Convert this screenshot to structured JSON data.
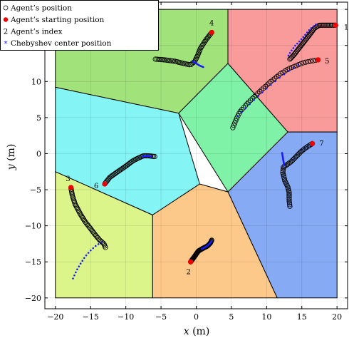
{
  "chart_data": {
    "type": "scatter",
    "xlabel": "x (m)",
    "ylabel": "y (m)",
    "xlim": [
      -21.5,
      21.5
    ],
    "ylim": [
      -21.5,
      21
    ],
    "xticks": [
      -20,
      -15,
      -10,
      -5,
      0,
      5,
      10,
      15,
      20
    ],
    "yticks": [
      -20,
      -15,
      -10,
      -5,
      0,
      5,
      10,
      15,
      20
    ],
    "grid": true,
    "legend_position": "top-left",
    "legend": [
      {
        "marker": "open-circle",
        "label": "Agent’s position"
      },
      {
        "marker": "red-dot",
        "label": "Agent’s starting position"
      },
      {
        "marker": "index",
        "symbol": "2",
        "label": "Agent’s index"
      },
      {
        "marker": "blue-star",
        "label": "Chebyshev center position"
      }
    ],
    "regions": [
      {
        "agent": "1",
        "color": "#f99b9b",
        "vertices": [
          [
            4.5,
            20
          ],
          [
            20,
            20
          ],
          [
            20,
            3
          ],
          [
            13,
            3
          ],
          [
            4.5,
            12.5
          ]
        ]
      },
      {
        "agent": "4",
        "color": "#a2e27b",
        "vertices": [
          [
            -20,
            20
          ],
          [
            4.5,
            20
          ],
          [
            4.5,
            12.5
          ],
          [
            -2.5,
            5.6
          ],
          [
            -20,
            9.2
          ]
        ]
      },
      {
        "agent": "5",
        "color": "#7ff2a7",
        "vertices": [
          [
            4.5,
            12.5
          ],
          [
            13,
            3
          ],
          [
            4.5,
            -5.3
          ],
          [
            -2.5,
            5.6
          ]
        ]
      },
      {
        "agent": "6",
        "color": "#84f4f4",
        "vertices": [
          [
            -20,
            9.2
          ],
          [
            -2.5,
            5.6
          ],
          [
            0.5,
            -4.2
          ],
          [
            -6.2,
            -8.5
          ],
          [
            -20,
            -2.5
          ]
        ]
      },
      {
        "agent": "7",
        "color": "#86aaf4",
        "vertices": [
          [
            13,
            3
          ],
          [
            20,
            3
          ],
          [
            20,
            -20
          ],
          [
            11.5,
            -20
          ],
          [
            4.5,
            -5.3
          ]
        ]
      },
      {
        "agent": "2",
        "color": "#fdc98a",
        "vertices": [
          [
            0.5,
            -4.2
          ],
          [
            4.5,
            -5.3
          ],
          [
            11.5,
            -20
          ],
          [
            -6.2,
            -20
          ],
          [
            -6.2,
            -8.5
          ]
        ]
      },
      {
        "agent": "3",
        "color": "#dbf58a",
        "vertices": [
          [
            -20,
            -2.5
          ],
          [
            -6.2,
            -8.5
          ],
          [
            -6.2,
            -20
          ],
          [
            -20,
            -20
          ]
        ]
      }
    ],
    "series": [
      {
        "agent": "1",
        "start": [
          19.8,
          17.8
        ],
        "index_pos": [
          21.3,
          17.5
        ],
        "path": [
          [
            19.8,
            17.8
          ],
          [
            18.5,
            17.8
          ],
          [
            17.5,
            17.8
          ],
          [
            16.8,
            17.4
          ],
          [
            16.2,
            16.6
          ],
          [
            15.4,
            15.6
          ],
          [
            14.6,
            14.6
          ],
          [
            13.8,
            13.6
          ],
          [
            13.3,
            13.1
          ]
        ],
        "cheb": [
          [
            17,
            17.9
          ],
          [
            16.2,
            17.3
          ],
          [
            15.5,
            16.5
          ],
          [
            14.8,
            15.7
          ],
          [
            14,
            14.9
          ],
          [
            13.4,
            14.1
          ],
          [
            13.1,
            13.6
          ]
        ]
      },
      {
        "agent": "2",
        "start": [
          -0.8,
          -15
        ],
        "index_pos": [
          -1.1,
          -16.4
        ],
        "path": [
          [
            -0.8,
            -15
          ],
          [
            -0.2,
            -14.2
          ],
          [
            0.3,
            -13.5
          ],
          [
            1.0,
            -13.1
          ],
          [
            1.6,
            -12.8
          ],
          [
            2.0,
            -12.4
          ],
          [
            2.2,
            -12.0
          ]
        ],
        "cheb": [
          [
            0.8,
            -13.2
          ],
          [
            1.4,
            -12.9
          ],
          [
            1.9,
            -12.5
          ],
          [
            2.2,
            -12.1
          ]
        ]
      },
      {
        "agent": "3",
        "start": [
          -17.8,
          -4.7
        ],
        "index_pos": [
          -18.2,
          -3.5
        ],
        "path": [
          [
            -17.8,
            -4.7
          ],
          [
            -17.6,
            -5.8
          ],
          [
            -17.2,
            -7.0
          ],
          [
            -16.5,
            -8.3
          ],
          [
            -15.8,
            -9.4
          ],
          [
            -15.0,
            -10.4
          ],
          [
            -14.3,
            -11.3
          ],
          [
            -13.7,
            -12.0
          ],
          [
            -13.1,
            -12.5
          ],
          [
            -12.9,
            -13.0
          ]
        ],
        "cheb": [
          [
            -17.5,
            -17.3
          ],
          [
            -17,
            -16.2
          ],
          [
            -16.4,
            -15.2
          ],
          [
            -15.8,
            -14.3
          ],
          [
            -15.1,
            -13.5
          ],
          [
            -14.3,
            -12.8
          ],
          [
            -13.5,
            -12.3
          ]
        ]
      },
      {
        "agent": "4",
        "start": [
          2.2,
          16.8
        ],
        "index_pos": [
          2.2,
          18.1
        ],
        "path": [
          [
            2.2,
            16.8
          ],
          [
            1.4,
            15.8
          ],
          [
            0.6,
            14.6
          ],
          [
            0.2,
            13.6
          ],
          [
            -0.2,
            12.8
          ],
          [
            -0.8,
            12.3
          ],
          [
            -1.8,
            12.5
          ],
          [
            -3.0,
            12.8
          ],
          [
            -4.5,
            13.0
          ],
          [
            -5.8,
            13.1
          ]
        ],
        "cheb": [
          [
            -0.5,
            12.8
          ],
          [
            0.0,
            12.5
          ],
          [
            0.5,
            12.2
          ],
          [
            1.0,
            12.0
          ]
        ]
      },
      {
        "agent": "5",
        "start": [
          17.3,
          13.0
        ],
        "index_pos": [
          18.6,
          12.8
        ],
        "path": [
          [
            17.3,
            13.0
          ],
          [
            16.2,
            12.8
          ],
          [
            15.2,
            12.6
          ],
          [
            14.2,
            12.2
          ],
          [
            13.2,
            11.8
          ],
          [
            12.0,
            11.1
          ],
          [
            10.6,
            10.0
          ],
          [
            9.0,
            8.6
          ],
          [
            7.4,
            7.1
          ],
          [
            6.2,
            5.8
          ],
          [
            5.7,
            4.8
          ],
          [
            5.5,
            4.3
          ],
          [
            5.2,
            3.6
          ]
        ],
        "cheb": [
          [
            14.5,
            12.3
          ],
          [
            13.2,
            11.5
          ],
          [
            11.8,
            10.5
          ],
          [
            10.2,
            9.2
          ],
          [
            8.6,
            7.8
          ],
          [
            7.0,
            6.3
          ],
          [
            5.9,
            5.2
          ]
        ]
      },
      {
        "agent": "6",
        "start": [
          -13.0,
          -4.2
        ],
        "index_pos": [
          -14.2,
          -4.5
        ],
        "path": [
          [
            -13.0,
            -4.2
          ],
          [
            -12.3,
            -3.3
          ],
          [
            -11.3,
            -2.6
          ],
          [
            -10.1,
            -1.8
          ],
          [
            -9.0,
            -1.0
          ],
          [
            -8.2,
            -0.6
          ],
          [
            -7.5,
            -0.3
          ],
          [
            -6.8,
            -0.3
          ],
          [
            -5.9,
            -0.4
          ]
        ],
        "cheb": [
          [
            -7.6,
            -0.4
          ],
          [
            -7.0,
            -0.3
          ],
          [
            -6.4,
            -0.4
          ]
        ]
      },
      {
        "agent": "7",
        "start": [
          16.5,
          1.4
        ],
        "index_pos": [
          17.8,
          1.4
        ],
        "path": [
          [
            16.5,
            1.4
          ],
          [
            15.7,
            0.9
          ],
          [
            14.9,
            0.3
          ],
          [
            14.2,
            -0.4
          ],
          [
            13.5,
            -1.1
          ],
          [
            12.8,
            -1.6
          ],
          [
            12.4,
            -1.8
          ],
          [
            12.3,
            -2.6
          ],
          [
            12.6,
            -3.8
          ],
          [
            13.0,
            -4.6
          ],
          [
            13.2,
            -5.4
          ],
          [
            13.2,
            -6.5
          ],
          [
            13.3,
            -7.3
          ]
        ],
        "cheb": [
          [
            12.2,
            0.1
          ],
          [
            12.3,
            -0.5
          ],
          [
            12.4,
            -1.1
          ],
          [
            12.5,
            -1.6
          ]
        ]
      }
    ]
  }
}
